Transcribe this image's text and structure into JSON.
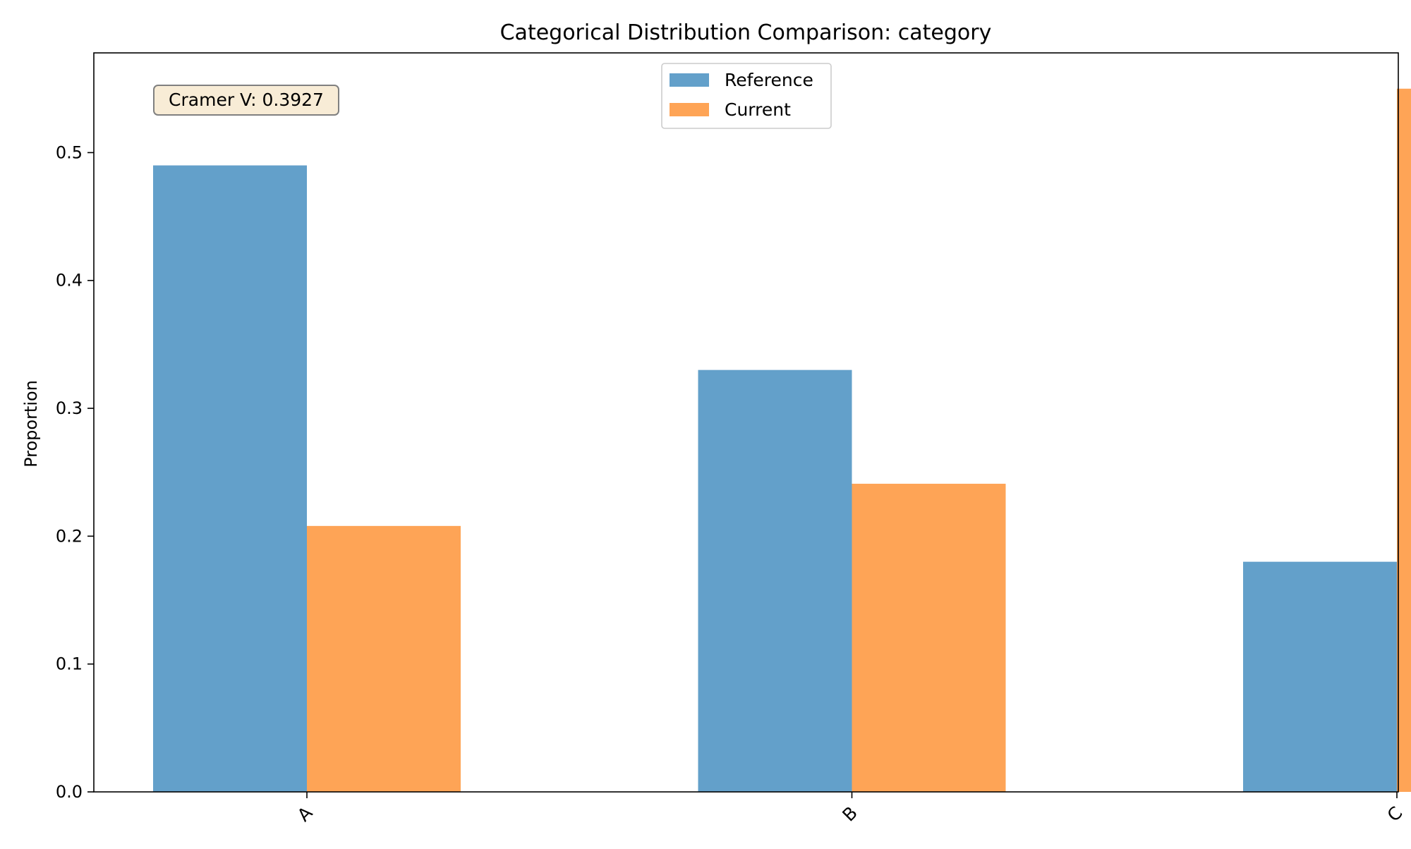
{
  "chart_data": {
    "type": "bar",
    "title": "Categorical Distribution Comparison: category",
    "xlabel": "",
    "ylabel": "Proportion",
    "categories": [
      "A",
      "B",
      "C"
    ],
    "series": [
      {
        "name": "Reference",
        "color": "#63a0ca",
        "values": [
          0.49,
          0.33,
          0.18
        ]
      },
      {
        "name": "Current",
        "color": "#fea456",
        "values": [
          0.208,
          0.241,
          0.55
        ]
      }
    ],
    "ylim": [
      0,
      0.578
    ],
    "yticks": [
      0.0,
      0.1,
      0.2,
      0.3,
      0.4,
      0.5
    ],
    "ytick_labels": [
      "0.0",
      "0.1",
      "0.2",
      "0.3",
      "0.4",
      "0.5"
    ],
    "legend_position": "top-center",
    "grid": false,
    "annotation": {
      "text": "Cramer V: 0.3927",
      "background": "#f8ecd6",
      "border": "#808080"
    }
  }
}
